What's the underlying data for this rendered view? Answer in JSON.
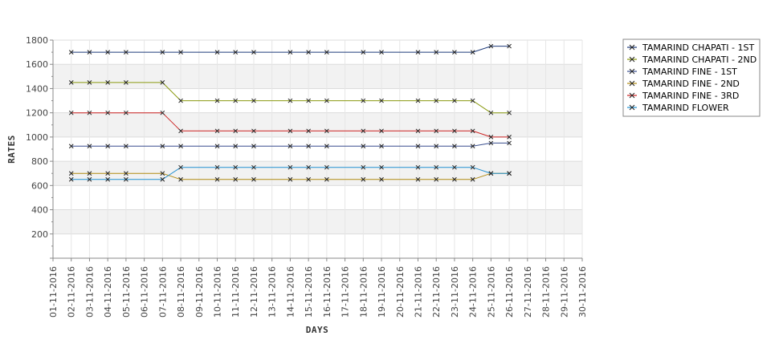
{
  "chart_data": {
    "type": "line",
    "title": "",
    "xlabel": "DAYS",
    "ylabel": "RATES",
    "ylim": [
      0,
      1800
    ],
    "yticks": [
      200,
      400,
      600,
      800,
      1000,
      1200,
      1400,
      1600,
      1800
    ],
    "x": [
      "01-11-2016",
      "02-11-2016",
      "03-11-2016",
      "04-11-2016",
      "05-11-2016",
      "06-11-2016",
      "07-11-2016",
      "08-11-2016",
      "09-11-2016",
      "10-11-2016",
      "11-11-2016",
      "12-11-2016",
      "13-11-2016",
      "14-11-2016",
      "15-11-2016",
      "16-11-2016",
      "17-11-2016",
      "18-11-2016",
      "19-11-2016",
      "20-11-2016",
      "21-11-2016",
      "22-11-2016",
      "23-11-2016",
      "24-11-2016",
      "25-11-2016",
      "26-11-2016",
      "27-11-2016",
      "28-11-2016",
      "29-11-2016",
      "30-11-2016"
    ],
    "grid": "alternating horizontal bands with light vertical gridlines",
    "legend_position": "right",
    "series": [
      {
        "name": "TAMARIND CHAPATI - 1ST",
        "color": "#1f3b7a",
        "points": [
          [
            "02-11-2016",
            1700
          ],
          [
            "03-11-2016",
            1700
          ],
          [
            "04-11-2016",
            1700
          ],
          [
            "05-11-2016",
            1700
          ],
          [
            "07-11-2016",
            1700
          ],
          [
            "08-11-2016",
            1700
          ],
          [
            "10-11-2016",
            1700
          ],
          [
            "11-11-2016",
            1700
          ],
          [
            "12-11-2016",
            1700
          ],
          [
            "14-11-2016",
            1700
          ],
          [
            "15-11-2016",
            1700
          ],
          [
            "16-11-2016",
            1700
          ],
          [
            "18-11-2016",
            1700
          ],
          [
            "19-11-2016",
            1700
          ],
          [
            "21-11-2016",
            1700
          ],
          [
            "22-11-2016",
            1700
          ],
          [
            "23-11-2016",
            1700
          ],
          [
            "24-11-2016",
            1700
          ],
          [
            "25-11-2016",
            1750
          ],
          [
            "26-11-2016",
            1750
          ]
        ]
      },
      {
        "name": "TAMARIND CHAPATI - 2ND",
        "color": "#8a9a10",
        "points": [
          [
            "02-11-2016",
            1450
          ],
          [
            "03-11-2016",
            1450
          ],
          [
            "04-11-2016",
            1450
          ],
          [
            "05-11-2016",
            1450
          ],
          [
            "07-11-2016",
            1450
          ],
          [
            "08-11-2016",
            1300
          ],
          [
            "10-11-2016",
            1300
          ],
          [
            "11-11-2016",
            1300
          ],
          [
            "12-11-2016",
            1300
          ],
          [
            "14-11-2016",
            1300
          ],
          [
            "15-11-2016",
            1300
          ],
          [
            "16-11-2016",
            1300
          ],
          [
            "18-11-2016",
            1300
          ],
          [
            "19-11-2016",
            1300
          ],
          [
            "21-11-2016",
            1300
          ],
          [
            "22-11-2016",
            1300
          ],
          [
            "23-11-2016",
            1300
          ],
          [
            "24-11-2016",
            1300
          ],
          [
            "25-11-2016",
            1200
          ],
          [
            "26-11-2016",
            1200
          ]
        ]
      },
      {
        "name": "TAMARIND FINE - 1ST",
        "color": "#3a4f8f",
        "points": [
          [
            "02-11-2016",
            925
          ],
          [
            "03-11-2016",
            925
          ],
          [
            "04-11-2016",
            925
          ],
          [
            "05-11-2016",
            925
          ],
          [
            "07-11-2016",
            925
          ],
          [
            "08-11-2016",
            925
          ],
          [
            "10-11-2016",
            925
          ],
          [
            "11-11-2016",
            925
          ],
          [
            "12-11-2016",
            925
          ],
          [
            "14-11-2016",
            925
          ],
          [
            "15-11-2016",
            925
          ],
          [
            "16-11-2016",
            925
          ],
          [
            "18-11-2016",
            925
          ],
          [
            "19-11-2016",
            925
          ],
          [
            "21-11-2016",
            925
          ],
          [
            "22-11-2016",
            925
          ],
          [
            "23-11-2016",
            925
          ],
          [
            "24-11-2016",
            925
          ],
          [
            "25-11-2016",
            950
          ],
          [
            "26-11-2016",
            950
          ]
        ]
      },
      {
        "name": "TAMARIND FINE - 2ND",
        "color": "#b08a10",
        "points": [
          [
            "02-11-2016",
            700
          ],
          [
            "03-11-2016",
            700
          ],
          [
            "04-11-2016",
            700
          ],
          [
            "05-11-2016",
            700
          ],
          [
            "07-11-2016",
            700
          ],
          [
            "08-11-2016",
            650
          ],
          [
            "10-11-2016",
            650
          ],
          [
            "11-11-2016",
            650
          ],
          [
            "12-11-2016",
            650
          ],
          [
            "14-11-2016",
            650
          ],
          [
            "15-11-2016",
            650
          ],
          [
            "16-11-2016",
            650
          ],
          [
            "18-11-2016",
            650
          ],
          [
            "19-11-2016",
            650
          ],
          [
            "21-11-2016",
            650
          ],
          [
            "22-11-2016",
            650
          ],
          [
            "23-11-2016",
            650
          ],
          [
            "24-11-2016",
            650
          ],
          [
            "25-11-2016",
            700
          ],
          [
            "26-11-2016",
            700
          ]
        ]
      },
      {
        "name": "TAMARIND FINE - 3RD",
        "color": "#cc2222",
        "points": [
          [
            "02-11-2016",
            1200
          ],
          [
            "03-11-2016",
            1200
          ],
          [
            "04-11-2016",
            1200
          ],
          [
            "05-11-2016",
            1200
          ],
          [
            "07-11-2016",
            1200
          ],
          [
            "08-11-2016",
            1050
          ],
          [
            "10-11-2016",
            1050
          ],
          [
            "11-11-2016",
            1050
          ],
          [
            "12-11-2016",
            1050
          ],
          [
            "14-11-2016",
            1050
          ],
          [
            "15-11-2016",
            1050
          ],
          [
            "16-11-2016",
            1050
          ],
          [
            "18-11-2016",
            1050
          ],
          [
            "19-11-2016",
            1050
          ],
          [
            "21-11-2016",
            1050
          ],
          [
            "22-11-2016",
            1050
          ],
          [
            "23-11-2016",
            1050
          ],
          [
            "24-11-2016",
            1050
          ],
          [
            "25-11-2016",
            1000
          ],
          [
            "26-11-2016",
            1000
          ]
        ]
      },
      {
        "name": "TAMARIND FLOWER",
        "color": "#1f8fd0",
        "points": [
          [
            "02-11-2016",
            650
          ],
          [
            "03-11-2016",
            650
          ],
          [
            "04-11-2016",
            650
          ],
          [
            "05-11-2016",
            650
          ],
          [
            "07-11-2016",
            650
          ],
          [
            "08-11-2016",
            750
          ],
          [
            "10-11-2016",
            750
          ],
          [
            "11-11-2016",
            750
          ],
          [
            "12-11-2016",
            750
          ],
          [
            "14-11-2016",
            750
          ],
          [
            "15-11-2016",
            750
          ],
          [
            "16-11-2016",
            750
          ],
          [
            "18-11-2016",
            750
          ],
          [
            "19-11-2016",
            750
          ],
          [
            "21-11-2016",
            750
          ],
          [
            "22-11-2016",
            750
          ],
          [
            "23-11-2016",
            750
          ],
          [
            "24-11-2016",
            750
          ],
          [
            "25-11-2016",
            700
          ],
          [
            "26-11-2016",
            700
          ]
        ]
      }
    ]
  }
}
